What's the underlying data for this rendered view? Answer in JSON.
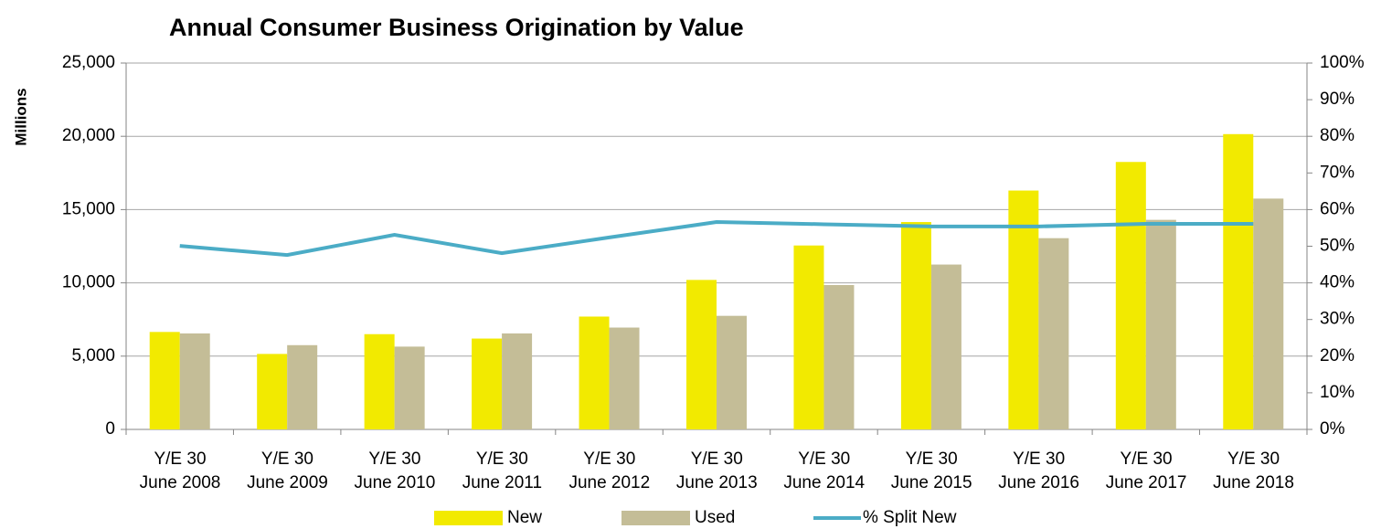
{
  "chart_data": {
    "type": "bar-line",
    "title": "Annual Consumer Business Origination by Value",
    "y_label": "Millions",
    "categories": [
      "Y/E 30\nJune 2008",
      "Y/E 30\nJune 2009",
      "Y/E 30\nJune 2010",
      "Y/E 30\nJune 2011",
      "Y/E 30\nJune 2012",
      "Y/E 30\nJune 2013",
      "Y/E 30\nJune 2014",
      "Y/E 30\nJune 2015",
      "Y/E 30\nJune 2016",
      "Y/E 30\nJune 2017",
      "Y/E 30\nJune 2018"
    ],
    "series": [
      {
        "name": "New",
        "type": "bar",
        "color": "#f2ea00",
        "values": [
          6650,
          5150,
          6500,
          6200,
          7700,
          10200,
          12550,
          14150,
          16300,
          18250,
          20150
        ]
      },
      {
        "name": "Used",
        "type": "bar",
        "color": "#c4bd97",
        "values": [
          6550,
          5750,
          5650,
          6550,
          6950,
          7750,
          9850,
          11250,
          13050,
          14300,
          15750
        ]
      },
      {
        "name": "% Split New",
        "type": "line",
        "axis": "y2",
        "color": "#4bacc6",
        "values": [
          50.1,
          47.6,
          53.1,
          48.1,
          52.4,
          56.6,
          56.0,
          55.4,
          55.4,
          56.1,
          56.1
        ]
      }
    ],
    "ylim": [
      0,
      25000
    ],
    "yticks": [
      0,
      {
        "value": 5000,
        "label": "5,000"
      },
      {
        "value": 10000,
        "label": "10,000"
      },
      {
        "value": 15000,
        "label": "15,000"
      },
      {
        "value": 20000,
        "label": "20,000"
      },
      {
        "value": 25000,
        "label": "25,000"
      }
    ],
    "y2lim": [
      0,
      100
    ],
    "y2ticks": [
      {
        "value": 0,
        "label": "0%"
      },
      {
        "value": 10,
        "label": "10%"
      },
      {
        "value": 20,
        "label": "20%"
      },
      {
        "value": 30,
        "label": "30%"
      },
      {
        "value": 40,
        "label": "40%"
      },
      {
        "value": 50,
        "label": "50%"
      },
      {
        "value": 60,
        "label": "60%"
      },
      {
        "value": 70,
        "label": "70%"
      },
      {
        "value": 80,
        "label": "80%"
      },
      {
        "value": 90,
        "label": "90%"
      },
      {
        "value": 100,
        "label": "100%"
      }
    ],
    "grid": true,
    "legend": "bottom"
  }
}
